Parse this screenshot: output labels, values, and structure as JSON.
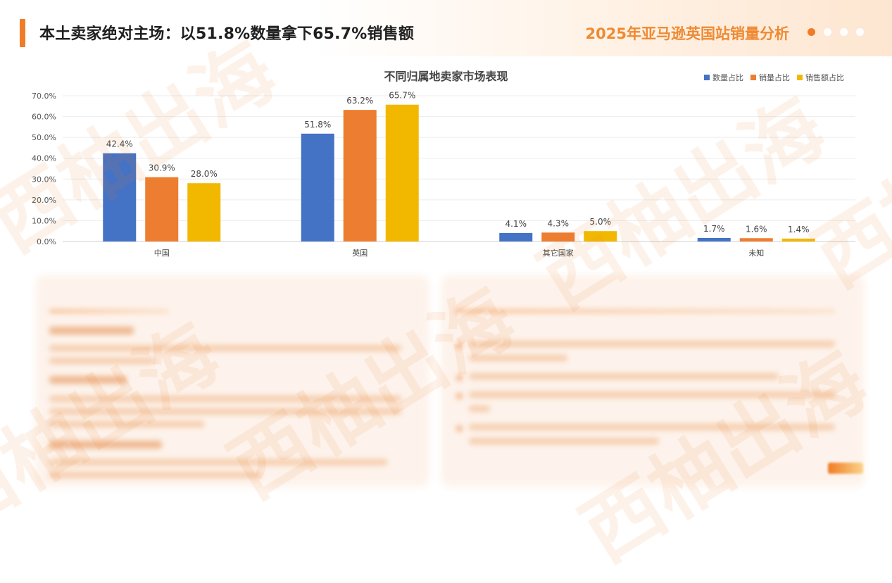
{
  "header": {
    "main_title": "本土卖家绝对主场：以51.8%数量拿下65.7%销售额",
    "report_title": "2025年亚马逊英国站销量分析"
  },
  "colors": {
    "accent": "#f07c26",
    "series_blue": "#4472c4",
    "series_orange": "#ed7d31",
    "series_yellow": "#f2b800",
    "dots": [
      "#f07c26",
      "#ffffff",
      "#ffffff",
      "#ffffff"
    ]
  },
  "watermark_text": "西柚出海",
  "chart_data": {
    "type": "bar",
    "title": "不同归属地卖家市场表现",
    "categories": [
      "中国",
      "英国",
      "其它国家",
      "未知"
    ],
    "series": [
      {
        "name": "数量占比",
        "values": [
          42.4,
          51.8,
          4.1,
          1.7
        ]
      },
      {
        "name": "销量占比",
        "values": [
          30.9,
          63.2,
          4.3,
          1.6
        ]
      },
      {
        "name": "销售额占比",
        "values": [
          28.0,
          65.7,
          5.0,
          1.4
        ]
      }
    ],
    "ylim": [
      0,
      70
    ],
    "yticks": [
      "0.0%",
      "10.0%",
      "20.0%",
      "30.0%",
      "40.0%",
      "50.0%",
      "60.0%",
      "70.0%"
    ],
    "value_suffix": "%",
    "grid": true,
    "legend_position": "top-right"
  }
}
